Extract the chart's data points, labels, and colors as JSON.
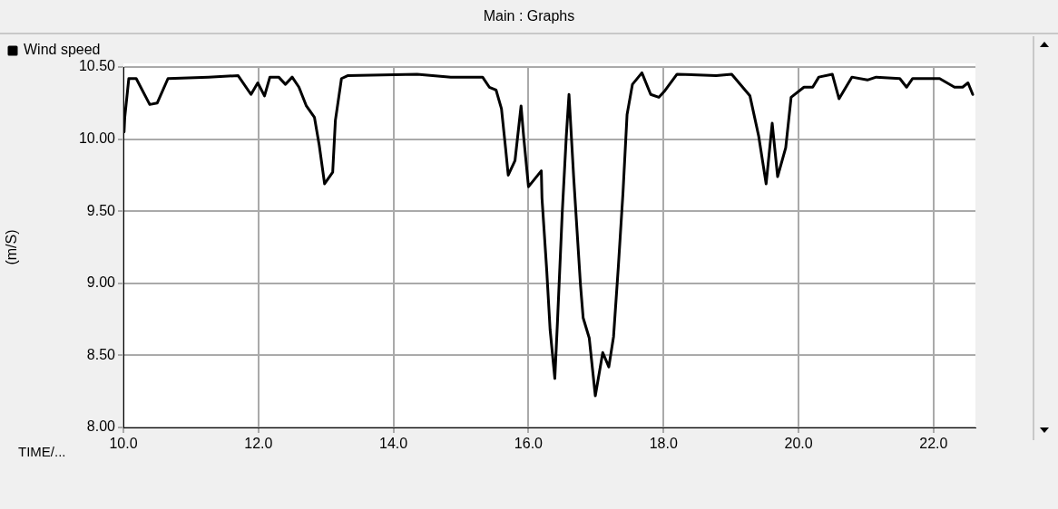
{
  "chart_data": {
    "type": "line",
    "title": "Main : Graphs",
    "xlabel": "TIME/...",
    "ylabel": "(m/S)",
    "series": [
      {
        "name": "Wind speed",
        "color": "#000000",
        "x": [
          10.01,
          10.02,
          10.08,
          10.19,
          10.39,
          10.5,
          10.66,
          11.26,
          11.7,
          11.89,
          11.99,
          12.09,
          12.17,
          12.3,
          12.4,
          12.5,
          12.6,
          12.71,
          12.83,
          12.9,
          12.98,
          13.1,
          13.14,
          13.23,
          13.32,
          14.35,
          14.85,
          15.32,
          15.42,
          15.52,
          15.6,
          15.66,
          15.7,
          15.8,
          15.89,
          15.93,
          16.0,
          16.19,
          16.2,
          16.27,
          16.32,
          16.39,
          16.43,
          16.5,
          16.56,
          16.6,
          16.67,
          16.77,
          16.81,
          16.9,
          16.99,
          17.1,
          17.19,
          17.26,
          17.33,
          17.4,
          17.46,
          17.54,
          17.68,
          17.81,
          17.93,
          18.01,
          18.2,
          18.78,
          19.01,
          19.28,
          19.41,
          19.52,
          19.61,
          19.69,
          19.81,
          19.89,
          20.08,
          20.21,
          20.3,
          20.5,
          20.6,
          20.79,
          21.02,
          21.15,
          21.5,
          21.6,
          21.69,
          22.09,
          22.31,
          22.43,
          22.51,
          22.58
        ],
        "values": [
          10.05,
          10.15,
          10.42,
          10.42,
          10.24,
          10.25,
          10.42,
          10.43,
          10.44,
          10.31,
          10.39,
          10.3,
          10.43,
          10.43,
          10.38,
          10.43,
          10.36,
          10.23,
          10.15,
          9.96,
          9.69,
          9.77,
          10.13,
          10.42,
          10.44,
          10.45,
          10.43,
          10.43,
          10.36,
          10.34,
          10.21,
          9.94,
          9.75,
          9.85,
          10.23,
          10.01,
          9.67,
          9.78,
          9.59,
          9.09,
          8.68,
          8.34,
          8.74,
          9.49,
          10.02,
          10.31,
          9.73,
          8.99,
          8.76,
          8.62,
          8.22,
          8.52,
          8.42,
          8.63,
          9.11,
          9.63,
          10.17,
          10.38,
          10.46,
          10.31,
          10.29,
          10.33,
          10.45,
          10.44,
          10.45,
          10.3,
          10.02,
          9.69,
          10.11,
          9.74,
          9.94,
          10.29,
          10.36,
          10.36,
          10.43,
          10.45,
          10.28,
          10.43,
          10.41,
          10.43,
          10.42,
          10.36,
          10.42,
          10.42,
          10.36,
          10.36,
          10.39,
          10.31
        ]
      }
    ],
    "xlim": [
      10,
      22.62
    ],
    "xticks": [
      {
        "value": 10,
        "label": "10.0"
      },
      {
        "value": 12,
        "label": "12.0"
      },
      {
        "value": 14,
        "label": "14.0"
      },
      {
        "value": 16,
        "label": "16.0"
      },
      {
        "value": 18,
        "label": "18.0"
      },
      {
        "value": 20,
        "label": "20.0"
      },
      {
        "value": 22,
        "label": "22.0"
      }
    ],
    "ylim": [
      8,
      10.5
    ],
    "yticks": [
      {
        "value": 8,
        "label": "8.00"
      },
      {
        "value": 8.5,
        "label": "8.50"
      },
      {
        "value": 9,
        "label": "9.00"
      },
      {
        "value": 9.5,
        "label": "9.50"
      },
      {
        "value": 10,
        "label": "10.00"
      },
      {
        "value": 10.5,
        "label": "10.50"
      }
    ],
    "grid": true,
    "legend": "top left",
    "marker": "none",
    "line_style": "solid"
  }
}
